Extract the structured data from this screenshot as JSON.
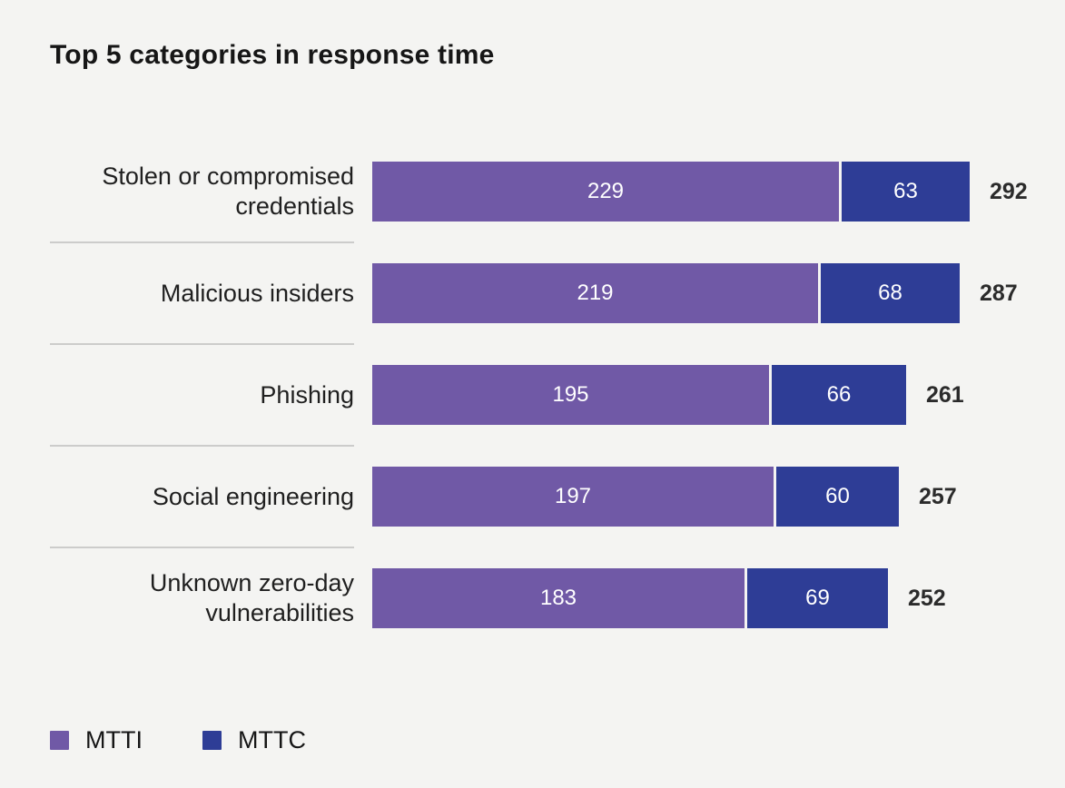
{
  "title": "Top 5 categories in response time",
  "colors": {
    "background": "#f4f4f2",
    "mtti": "#7059a6",
    "mttc": "#2e3d96",
    "title_text": "#161616",
    "total_text": "#2b2b2b",
    "separator": "#cccccb"
  },
  "chart_data": {
    "type": "bar",
    "orientation": "horizontal",
    "stacked": true,
    "title": "Top 5 categories in response time",
    "categories": [
      "Stolen or compromised credentials",
      "Malicious insiders",
      "Phishing",
      "Social engineering",
      "Unknown zero-day vulnerabilities"
    ],
    "series": [
      {
        "name": "MTTI",
        "color": "#7059a6",
        "values": [
          229,
          219,
          195,
          197,
          183
        ]
      },
      {
        "name": "MTTC",
        "color": "#2e3d96",
        "values": [
          63,
          68,
          66,
          60,
          69
        ]
      }
    ],
    "totals": [
      292,
      287,
      261,
      257,
      252
    ],
    "xlabel": "",
    "ylabel": "",
    "xlim": [
      0,
      292
    ],
    "grid": false,
    "legend_position": "bottom",
    "value_labels": "inside-segments",
    "total_labels": "right-of-bar"
  }
}
